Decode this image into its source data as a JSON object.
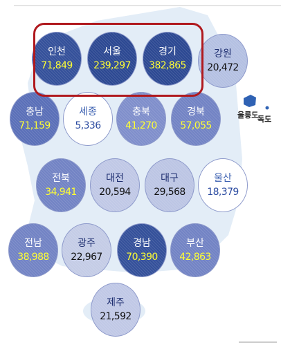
{
  "regions": [
    {
      "name": "인천",
      "value": "71,849",
      "color": "#34509a"
    },
    {
      "name": "서울",
      "value": "239,297",
      "color": "#2c4892"
    },
    {
      "name": "경기",
      "value": "382,865",
      "color": "#2c4892"
    },
    {
      "name": "강원",
      "value": "20,472",
      "color": "#b4c0e2"
    },
    {
      "name": "충남",
      "value": "71,159",
      "color": "#5a6fb8"
    },
    {
      "name": "세종",
      "value": "5,336",
      "color": "#ffffff"
    },
    {
      "name": "충북",
      "value": "41,270",
      "color": "#7f8ecb"
    },
    {
      "name": "경북",
      "value": "57,055",
      "color": "#7283c4"
    },
    {
      "name": "전북",
      "value": "34,941",
      "color": "#7283c4"
    },
    {
      "name": "대전",
      "value": "20,594",
      "color": "#c0c8e6"
    },
    {
      "name": "대구",
      "value": "29,568",
      "color": "#bcc5e4"
    },
    {
      "name": "울산",
      "value": "18,379",
      "color": "#ffffff"
    },
    {
      "name": "전남",
      "value": "38,988",
      "color": "#7283c4"
    },
    {
      "name": "광주",
      "value": "22,967",
      "color": "#c4cce6"
    },
    {
      "name": "경남",
      "value": "70,390",
      "color": "#34509a"
    },
    {
      "name": "부산",
      "value": "42,863",
      "color": "#7283c4"
    },
    {
      "name": "제주",
      "value": "21,592",
      "color": "#c0c8e6"
    }
  ],
  "islands": [
    "울릉도",
    "독도"
  ]
}
